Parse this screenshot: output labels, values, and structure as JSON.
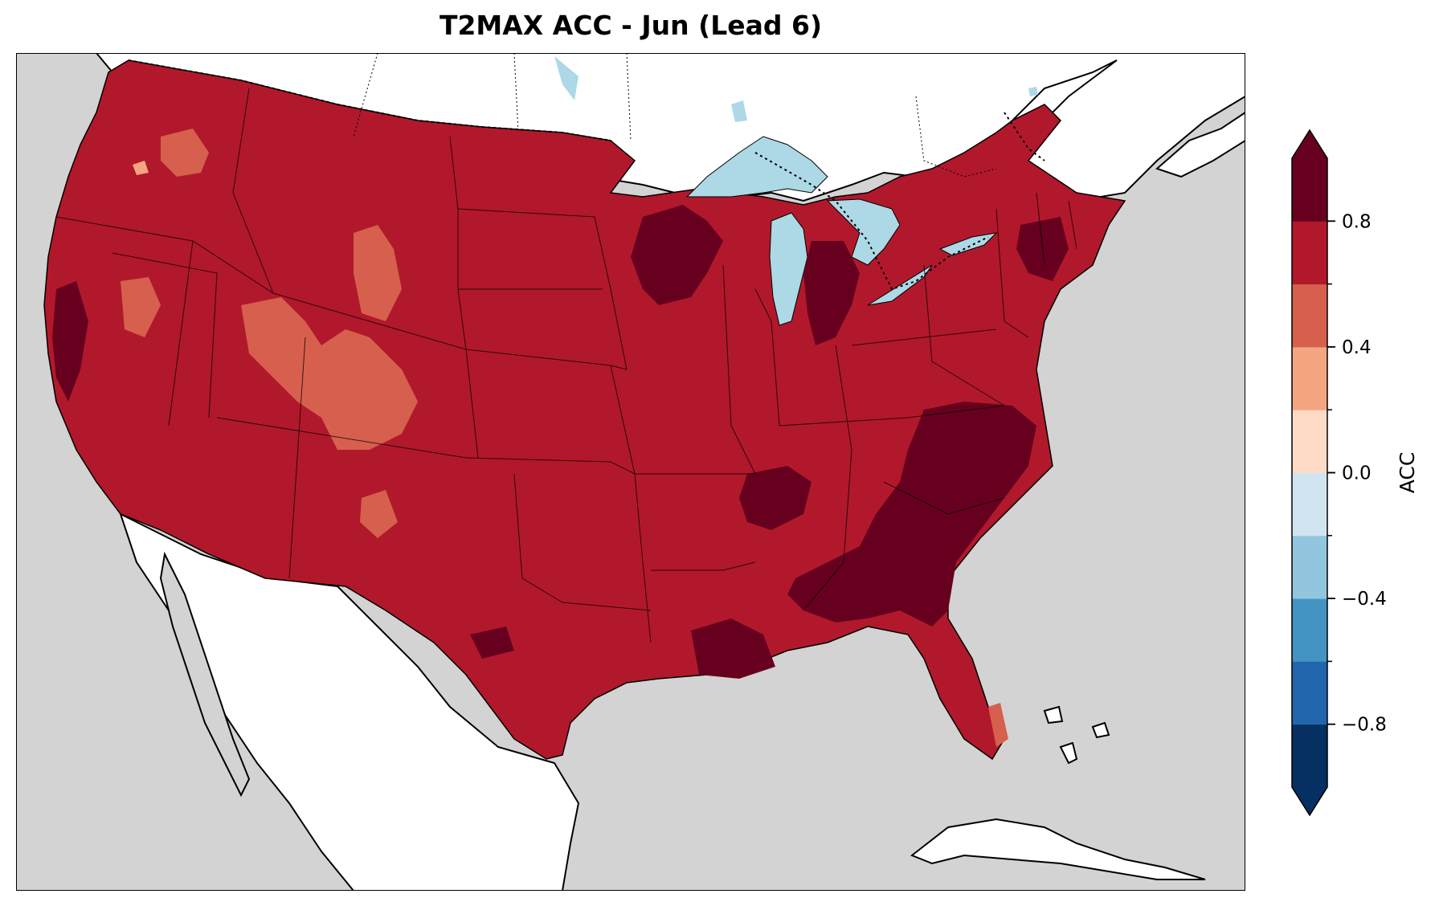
{
  "title": "T2MAX ACC - Jun (Lead 6)",
  "colorbar": {
    "label": "ACC",
    "range": [
      -1.0,
      1.0
    ],
    "extend": "both",
    "bin_edges": [
      -1.0,
      -0.8,
      -0.6,
      -0.4,
      -0.2,
      0.0,
      0.2,
      0.4,
      0.6,
      0.8,
      1.0
    ],
    "bin_colors": [
      "#053061",
      "#2166ac",
      "#4393c3",
      "#92c5de",
      "#d1e5f0",
      "#fddbc7",
      "#f4a582",
      "#d6604d",
      "#b2182b",
      "#67001f"
    ],
    "ticks": [
      {
        "value": -0.8,
        "label": "−0.8"
      },
      {
        "value": -0.4,
        "label": "−0.4"
      },
      {
        "value": 0.0,
        "label": "0.0"
      },
      {
        "value": 0.4,
        "label": "0.4"
      },
      {
        "value": 0.8,
        "label": "0.8"
      }
    ]
  },
  "colors": {
    "ocean": "#d3d3d3",
    "land": "#ffffff",
    "lakes": "#add8e6",
    "field_main": "#b2182b",
    "field_high": "#67001f",
    "field_mid": "#d6604d",
    "field_low": "#f4a582"
  }
}
